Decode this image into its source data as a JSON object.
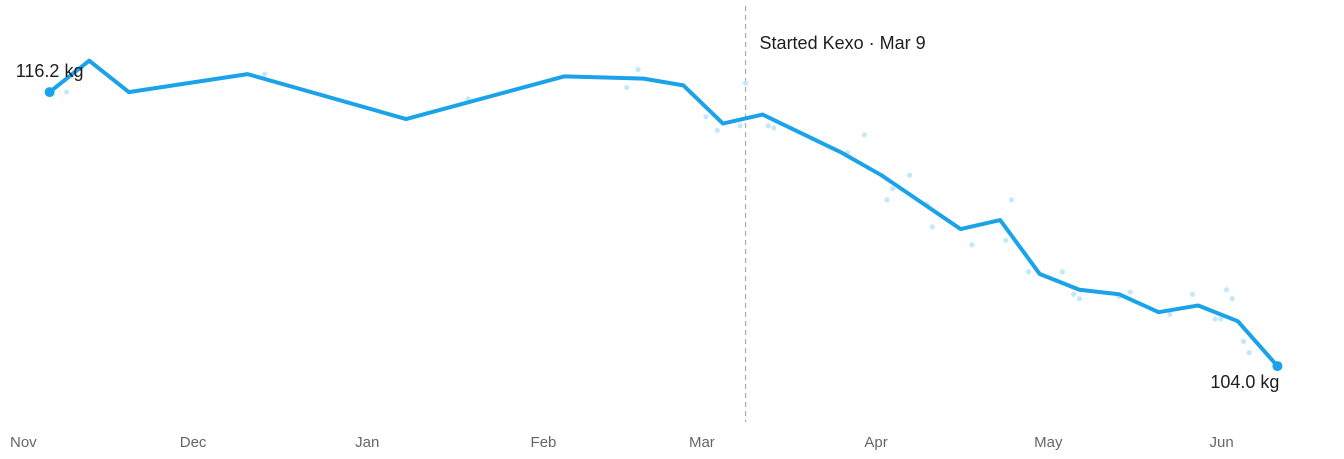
{
  "chart_data": {
    "type": "line",
    "color": "#1aa3e8",
    "x": [
      7,
      14,
      21,
      42,
      70,
      98,
      112,
      119,
      126,
      133,
      147,
      154,
      168,
      175,
      182,
      189,
      196,
      203,
      210,
      217,
      224
    ],
    "values": [
      116.2,
      117.6,
      116.2,
      117.0,
      115.0,
      116.9,
      116.8,
      116.5,
      114.8,
      115.2,
      113.5,
      112.5,
      110.1,
      110.5,
      108.1,
      107.4,
      107.2,
      106.4,
      106.7,
      106.0,
      104.0
    ],
    "value_labels": [
      "116.2 kg",
      null,
      null,
      null,
      null,
      null,
      null,
      null,
      null,
      null,
      null,
      null,
      null,
      null,
      null,
      null,
      null,
      null,
      null,
      null,
      "104.0 kg"
    ],
    "readings": {
      "color": "#c4e7fa",
      "x": [
        10,
        45,
        81,
        109,
        111,
        123,
        125,
        129,
        130,
        134,
        135,
        148,
        151,
        155,
        156,
        159,
        162,
        163,
        170,
        176,
        177,
        180,
        186,
        189,
        188,
        196,
        198,
        205,
        209,
        213,
        214,
        215,
        216,
        218,
        219
      ],
      "values": [
        116.2,
        117.0,
        115.9,
        116.4,
        117.2,
        115.1,
        114.5,
        114.7,
        116.6,
        114.7,
        114.6,
        113.5,
        114.3,
        111.4,
        111.9,
        112.5,
        111.2,
        110.2,
        109.4,
        109.6,
        111.4,
        108.2,
        108.2,
        107.0,
        107.2,
        107.1,
        107.3,
        106.3,
        107.2,
        106.1,
        106.1,
        107.4,
        107.0,
        105.1,
        104.6
      ]
    },
    "annotation": {
      "x": 130,
      "text": "Started Kexo · Mar 9"
    },
    "xlim": [
      0,
      234
    ],
    "ylim": [
      101.6,
      120.3
    ],
    "xticks": [
      {
        "value": 0,
        "label": "Nov"
      },
      {
        "value": 30,
        "label": "Dec"
      },
      {
        "value": 61,
        "label": "Jan"
      },
      {
        "value": 92,
        "label": "Feb"
      },
      {
        "value": 120,
        "label": "Mar"
      },
      {
        "value": 151,
        "label": "Apr"
      },
      {
        "value": 181,
        "label": "May"
      },
      {
        "value": 212,
        "label": "Jun"
      }
    ]
  }
}
